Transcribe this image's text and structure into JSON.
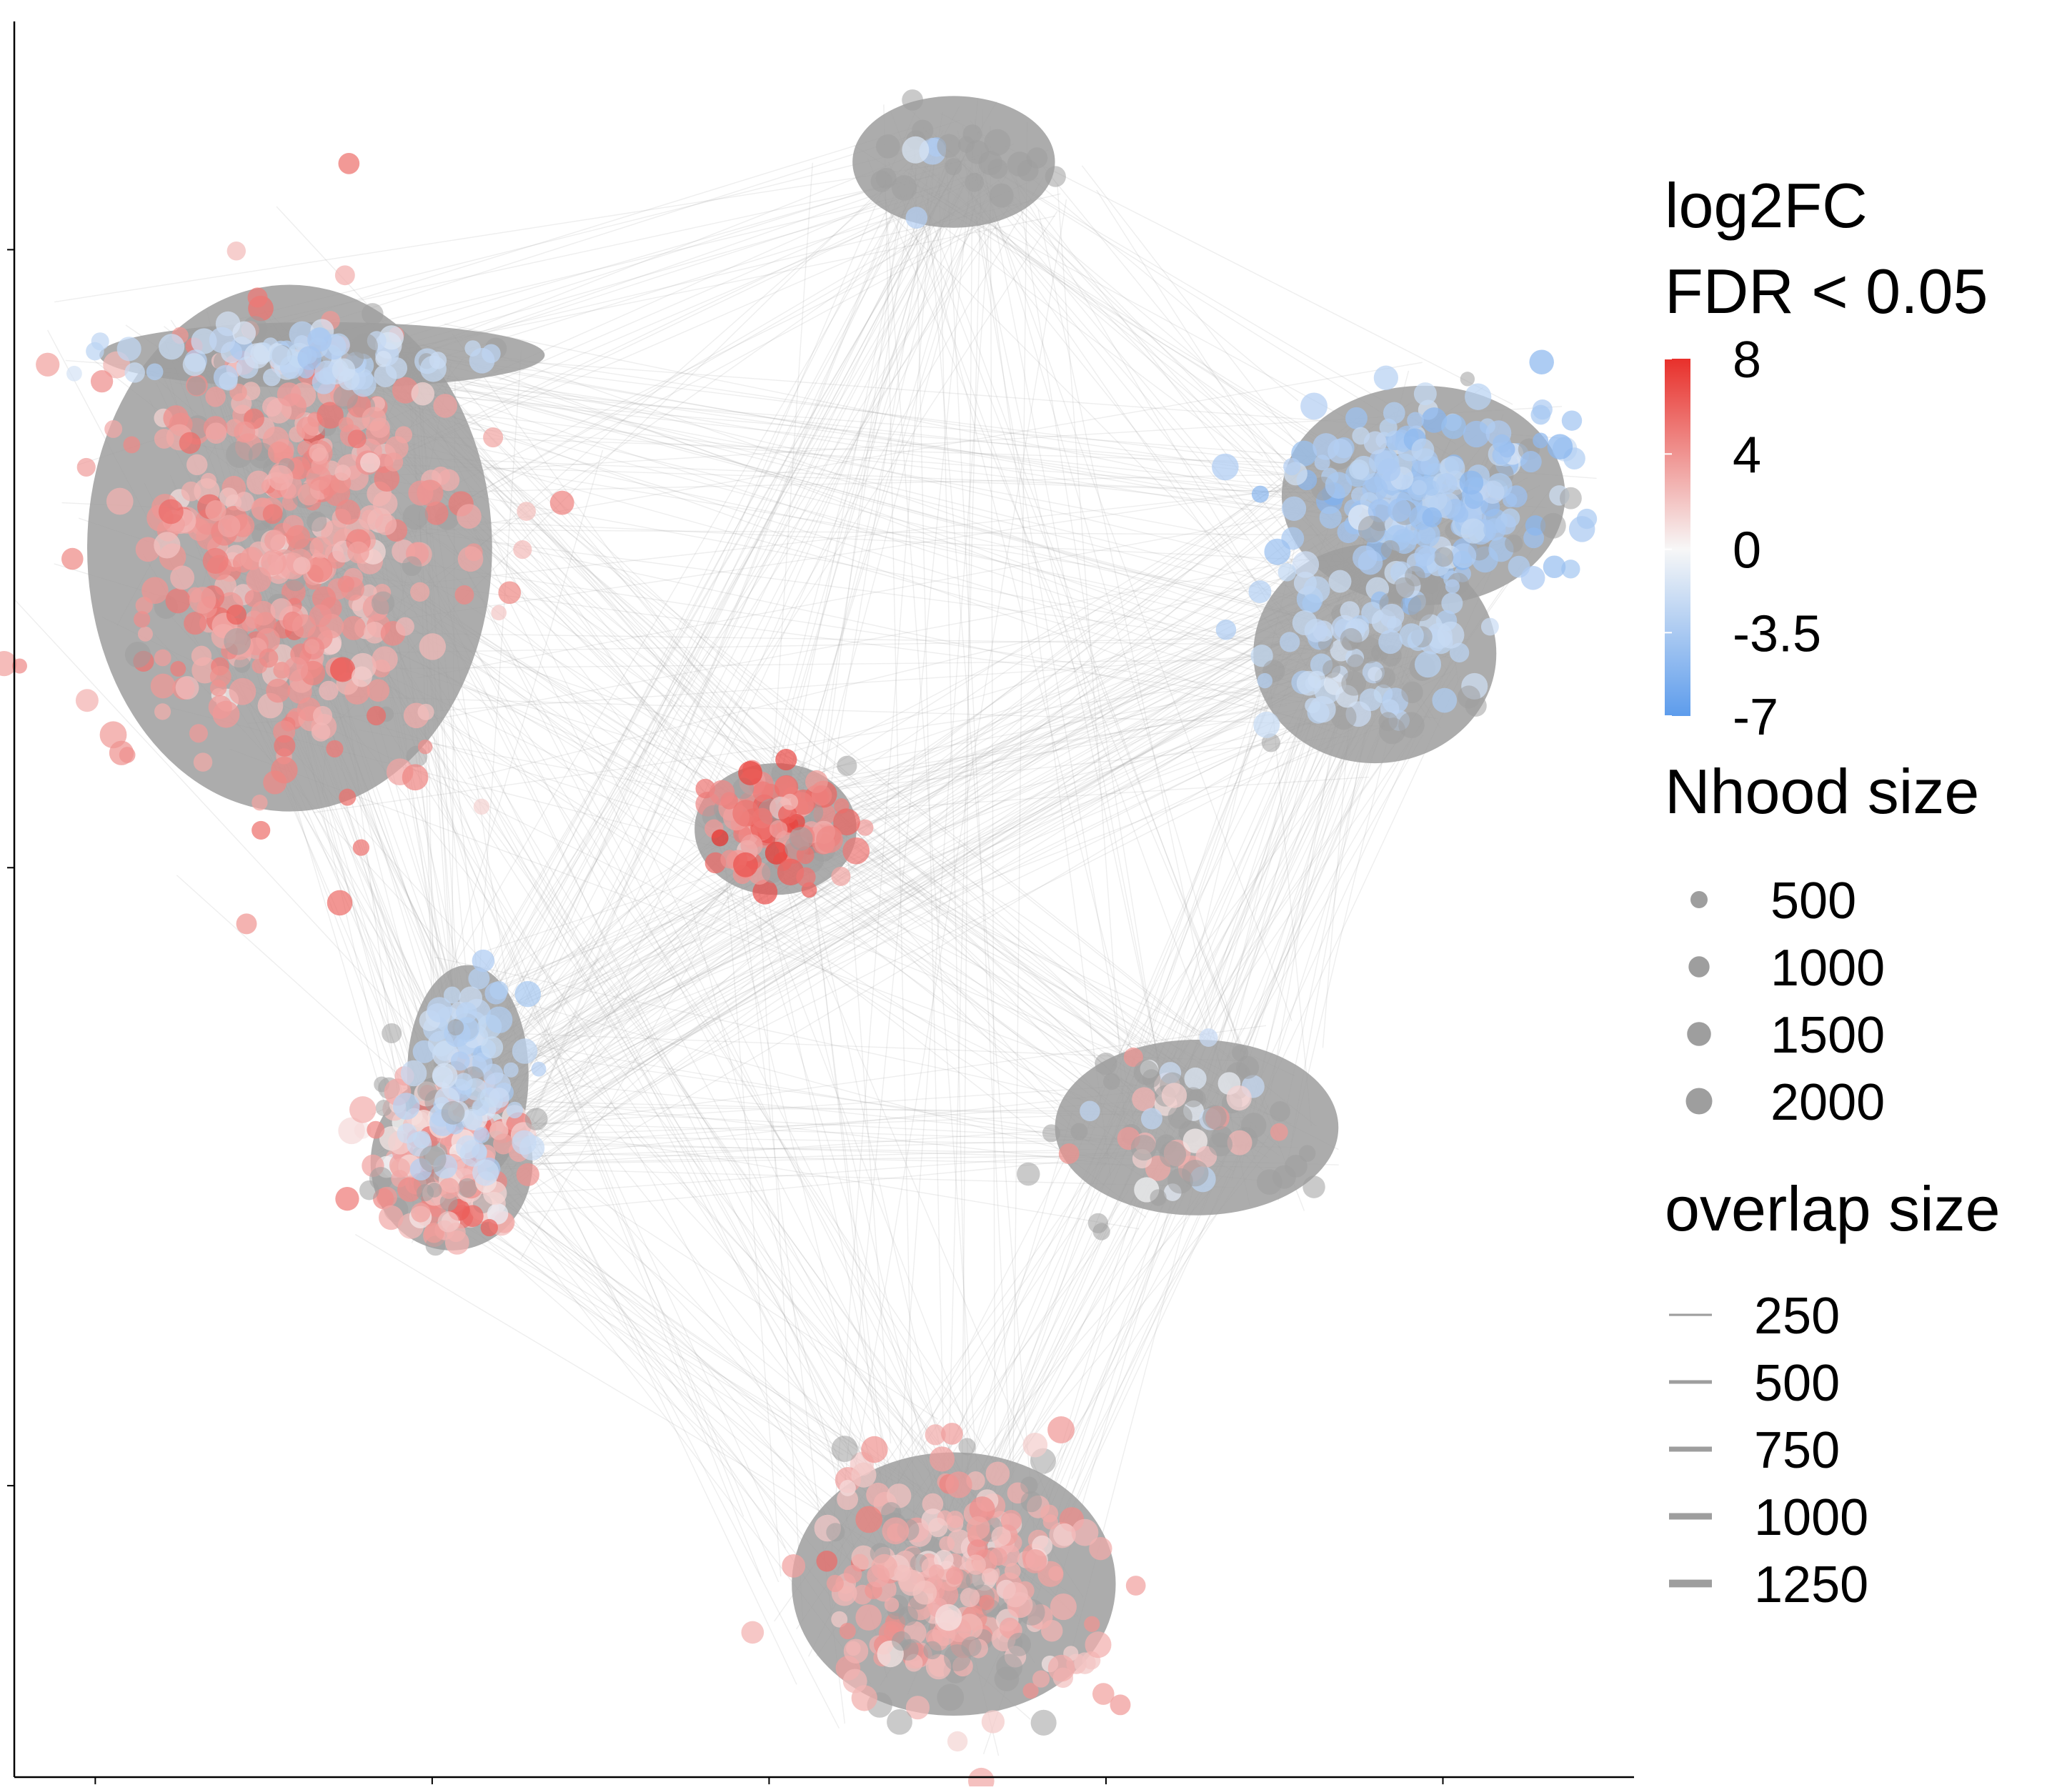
{
  "chart_data": {
    "type": "scatter",
    "subtype": "milo neighbourhood graph (nodes = neighbourhoods, edges = overlaps)",
    "xlabel": "",
    "ylabel": "",
    "x_tick_labels": [
      "",
      "",
      "",
      "",
      ""
    ],
    "y_tick_labels": [
      "",
      "",
      ""
    ],
    "legend_position": "right",
    "colors": {
      "fc_high": "#E8302B",
      "fc_mid": "#F7F7F7",
      "fc_low": "#5D9CEC",
      "nonsig_node": "#9E9E9E",
      "edge": "#9E9E9E",
      "axis": "#000000"
    },
    "color_legend": {
      "title_line1": "log2FC",
      "title_line2": "FDR < 0.05",
      "range": [
        -7,
        8
      ],
      "breaks": [
        {
          "value": 8,
          "label": "8"
        },
        {
          "value": 4,
          "label": "4"
        },
        {
          "value": 0,
          "label": "0"
        },
        {
          "value": -3.5,
          "label": "-3.5"
        },
        {
          "value": -7,
          "label": "-7"
        }
      ]
    },
    "size_legend": {
      "title": "Nhood size",
      "entries": [
        {
          "value": 500,
          "label": "500"
        },
        {
          "value": 1000,
          "label": "1000"
        },
        {
          "value": 1500,
          "label": "1500"
        },
        {
          "value": 2000,
          "label": "2000"
        }
      ]
    },
    "edge_legend": {
      "title": "overlap size",
      "entries": [
        {
          "value": 250,
          "label": "250"
        },
        {
          "value": 500,
          "label": "500"
        },
        {
          "value": 750,
          "label": "750"
        },
        {
          "value": 1000,
          "label": "1000"
        },
        {
          "value": 1250,
          "label": "1250"
        }
      ]
    },
    "clusters": [
      {
        "id": "upper-left",
        "x": 0.17,
        "y": 0.7,
        "spread": [
          0.1,
          0.12
        ],
        "n": 430,
        "fc": 3.5,
        "fc_sd": 1.0,
        "sig_frac": 0.88
      },
      {
        "id": "upper-left-band",
        "x": 0.19,
        "y": 0.81,
        "spread": [
          0.11,
          0.015
        ],
        "n": 80,
        "fc": -2.5,
        "fc_sd": 0.6,
        "sig_frac": 0.9
      },
      {
        "id": "top-center",
        "x": 0.58,
        "y": 0.92,
        "spread": [
          0.05,
          0.03
        ],
        "n": 25,
        "fc": -3.0,
        "fc_sd": 0.8,
        "sig_frac": 0.25
      },
      {
        "id": "right-upper",
        "x": 0.87,
        "y": 0.73,
        "spread": [
          0.07,
          0.05
        ],
        "n": 230,
        "fc": -3.3,
        "fc_sd": 0.9,
        "sig_frac": 0.92
      },
      {
        "id": "right-mid",
        "x": 0.84,
        "y": 0.64,
        "spread": [
          0.06,
          0.05
        ],
        "n": 90,
        "fc": -2.4,
        "fc_sd": 0.5,
        "sig_frac": 0.75
      },
      {
        "id": "center",
        "x": 0.47,
        "y": 0.54,
        "spread": [
          0.04,
          0.03
        ],
        "n": 110,
        "fc": 5.2,
        "fc_sd": 1.4,
        "sig_frac": 0.92
      },
      {
        "id": "left-lower",
        "x": 0.27,
        "y": 0.35,
        "spread": [
          0.04,
          0.04
        ],
        "n": 200,
        "fc": 3.0,
        "fc_sd": 1.5,
        "sig_frac": 0.85
      },
      {
        "id": "left-lower-blue",
        "x": 0.28,
        "y": 0.4,
        "spread": [
          0.03,
          0.05
        ],
        "n": 90,
        "fc": -2.4,
        "fc_sd": 0.5,
        "sig_frac": 0.9
      },
      {
        "id": "right-lower",
        "x": 0.73,
        "y": 0.37,
        "spread": [
          0.07,
          0.04
        ],
        "n": 70,
        "fc": 1.5,
        "fc_sd": 2.2,
        "sig_frac": 0.35
      },
      {
        "id": "bottom",
        "x": 0.58,
        "y": 0.11,
        "spread": [
          0.08,
          0.06
        ],
        "n": 260,
        "fc": 2.8,
        "fc_sd": 0.9,
        "sig_frac": 0.8
      }
    ]
  }
}
